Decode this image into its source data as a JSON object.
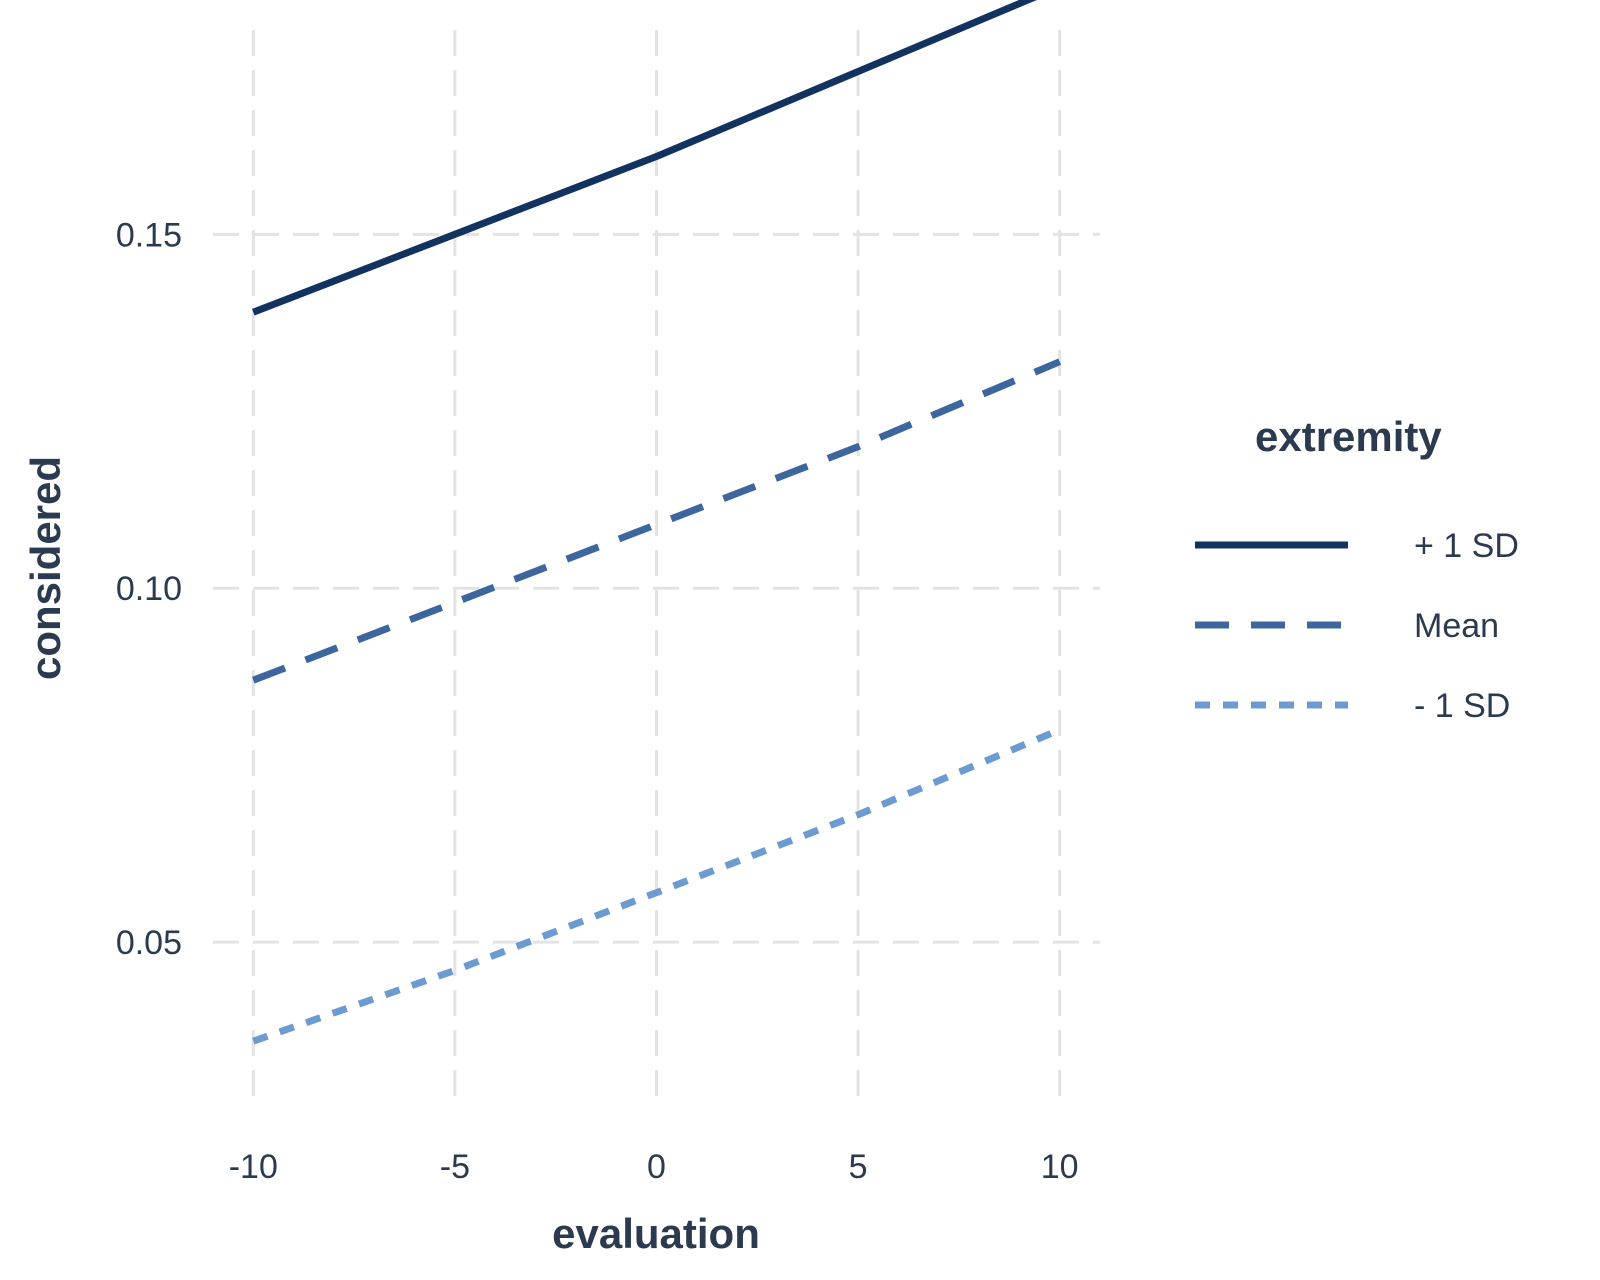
{
  "chart_data": {
    "type": "line",
    "title": "",
    "xlabel": "evaluation",
    "ylabel": "considered",
    "xlim": [
      -11,
      11
    ],
    "ylim": [
      0.026,
      0.18
    ],
    "x_ticks": [
      -10,
      -5,
      0,
      5,
      10
    ],
    "x_tick_labels": [
      "-10",
      "-5",
      "0",
      "5",
      "10"
    ],
    "y_ticks": [
      0.05,
      0.1,
      0.15
    ],
    "y_tick_labels": [
      "0.05",
      "0.10",
      "0.15"
    ],
    "grid": true,
    "legend": {
      "title": "extremity",
      "position": "right"
    },
    "series": [
      {
        "name": "+ 1 SD",
        "x": [
          -10,
          -5,
          0,
          5,
          10
        ],
        "values": [
          0.139,
          0.15,
          0.161,
          0.173,
          0.185
        ],
        "color": "#12325f",
        "style": "solid"
      },
      {
        "name": "Mean",
        "x": [
          -10,
          -5,
          0,
          5,
          10
        ],
        "values": [
          0.087,
          0.098,
          0.109,
          0.12,
          0.132
        ],
        "color": "#3d659e",
        "style": "dashed"
      },
      {
        "name": "- 1 SD",
        "x": [
          -10,
          -5,
          0,
          5,
          10
        ],
        "values": [
          0.036,
          0.046,
          0.057,
          0.068,
          0.08
        ],
        "color": "#6b9bd1",
        "style": "dotted"
      }
    ]
  }
}
